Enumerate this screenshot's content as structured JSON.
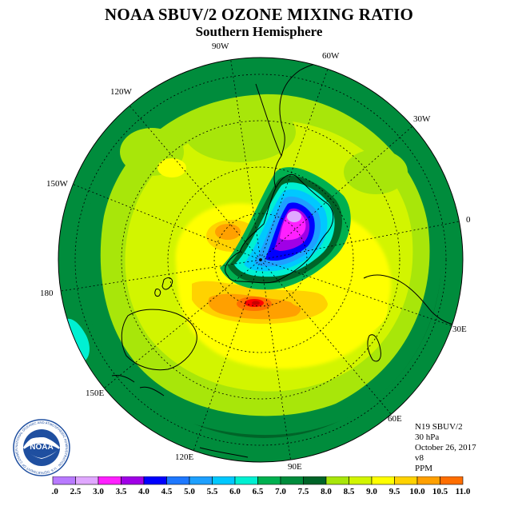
{
  "title": "NOAA SBUV/2 OZONE MIXING RATIO",
  "subtitle": "Southern Hemisphere",
  "longitude_labels": [
    "90W",
    "60W",
    "30W",
    "0",
    "30E",
    "60E",
    "90E",
    "120E",
    "150E",
    "180",
    "150W",
    "120W"
  ],
  "info": {
    "line1": "N19 SBUV/2",
    "line2": "30 hPa",
    "line3": "October 26, 2017",
    "line4": "v8",
    "line5": "PPM"
  },
  "logo": {
    "text": "NOAA",
    "ring_text": "NATIONAL OCEANIC AND ATMOSPHERIC ADMINISTRATION · U.S. DEPARTMENT OF COMMERCE"
  },
  "colorbar": {
    "unit": "PPM",
    "ticks": [
      "2.0",
      "2.5",
      "3.0",
      "3.5",
      "4.0",
      "4.5",
      "5.0",
      "5.5",
      "6.0",
      "6.5",
      "7.0",
      "7.5",
      "8.0",
      "8.5",
      "9.0",
      "9.5",
      "10.0",
      "10.5",
      "11.0"
    ],
    "colors": [
      "#b87aff",
      "#e0a8ff",
      "#ff20ff",
      "#a000e6",
      "#0000ff",
      "#1e78ff",
      "#1ea0ff",
      "#00c8ff",
      "#00f0d2",
      "#00b050",
      "#008c3c",
      "#006428",
      "#a8e60a",
      "#d2f500",
      "#ffff00",
      "#ffd200",
      "#ffa000",
      "#ff6e00",
      "#ff0000",
      "#c80000",
      "#8c4b3c"
    ]
  },
  "chart_data": {
    "type": "heatmap",
    "title": "NOAA SBUV/2 OZONE MIXING RATIO",
    "subtitle": "Southern Hemisphere",
    "projection": "south polar stereographic",
    "pressure_level": "30 hPa",
    "date": "October 26, 2017",
    "units": "PPM",
    "range": [
      2.0,
      11.0
    ],
    "interval": 0.5,
    "features": {
      "vortex_minimum_ppm": 3.0,
      "max_band_ppm": 10.5,
      "equatorward_edge_ppm": 6.0
    }
  }
}
